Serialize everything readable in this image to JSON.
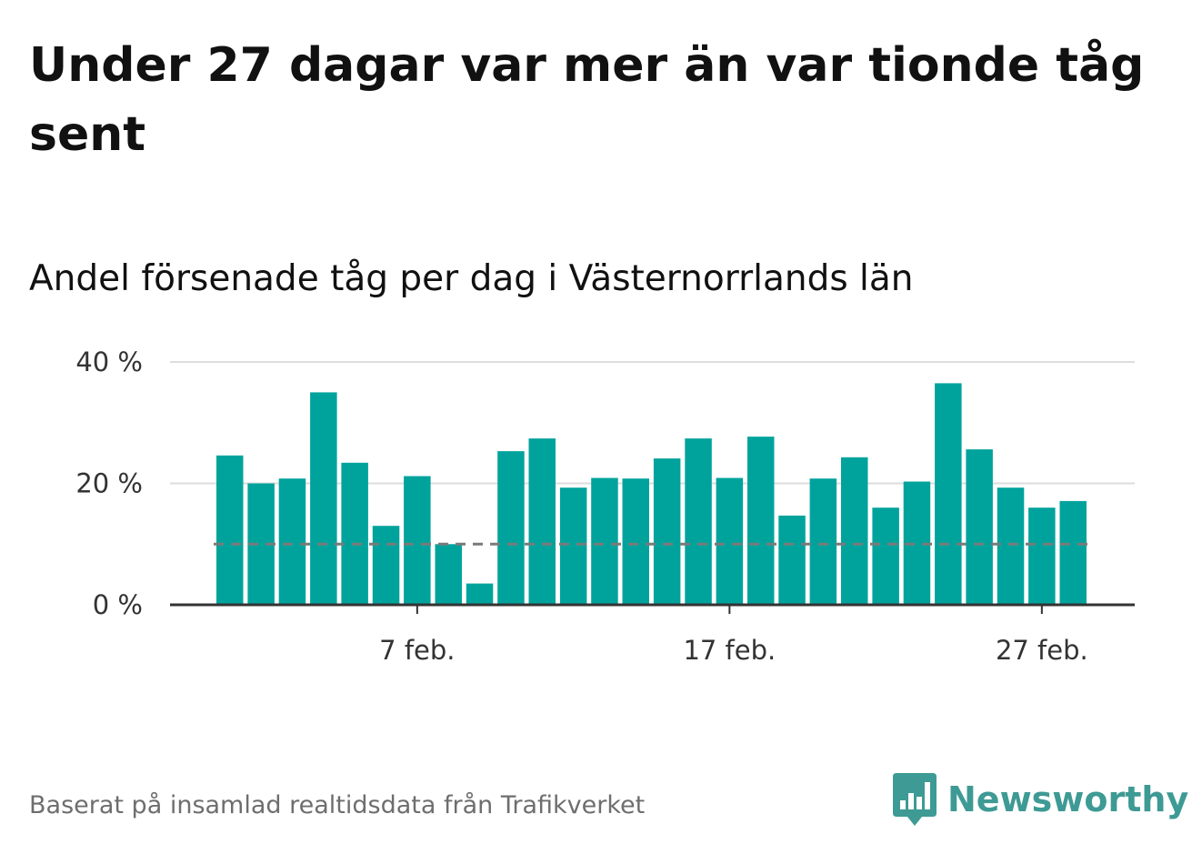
{
  "title": "Under 27 dagar var mer än var tionde tåg sent",
  "subtitle": "Andel försenade tåg per dag i Västernorrlands län",
  "source": "Baserat på insamlad realtidsdata från Trafikverket",
  "logo": {
    "name": "Newsworthy",
    "icon": "newsworthy-logo-icon"
  },
  "colors": {
    "bar": "#00a39c",
    "reference": "#7a7a7a",
    "grid": "#dddddd",
    "axis": "#333333",
    "logo": "#3e9a94"
  },
  "chart_data": {
    "type": "bar",
    "x": [
      "1 feb.",
      "2 feb.",
      "3 feb.",
      "4 feb.",
      "5 feb.",
      "6 feb.",
      "7 feb.",
      "8 feb.",
      "9 feb.",
      "10 feb.",
      "11 feb.",
      "12 feb.",
      "13 feb.",
      "14 feb.",
      "15 feb.",
      "16 feb.",
      "17 feb.",
      "18 feb.",
      "19 feb.",
      "20 feb.",
      "21 feb.",
      "22 feb.",
      "23 feb.",
      "24 feb.",
      "25 feb.",
      "26 feb.",
      "27 feb.",
      "28 feb."
    ],
    "values": [
      24.6,
      20,
      20.8,
      35,
      23.4,
      13,
      21.2,
      10,
      3.5,
      25.3,
      27.4,
      19.3,
      20.9,
      20.8,
      24.1,
      27.4,
      20.9,
      27.7,
      14.7,
      20.8,
      24.3,
      16,
      20.3,
      36.5,
      25.6,
      19.3,
      16,
      17.1
    ],
    "reference_line": 10,
    "ylim": [
      0,
      40
    ],
    "y_ticks": [
      {
        "value": 0,
        "label": "0 %"
      },
      {
        "value": 20,
        "label": "20 %"
      },
      {
        "value": 40,
        "label": "40 %"
      }
    ],
    "x_ticks": [
      "7 feb.",
      "17 feb.",
      "27 feb."
    ],
    "grid": true
  }
}
